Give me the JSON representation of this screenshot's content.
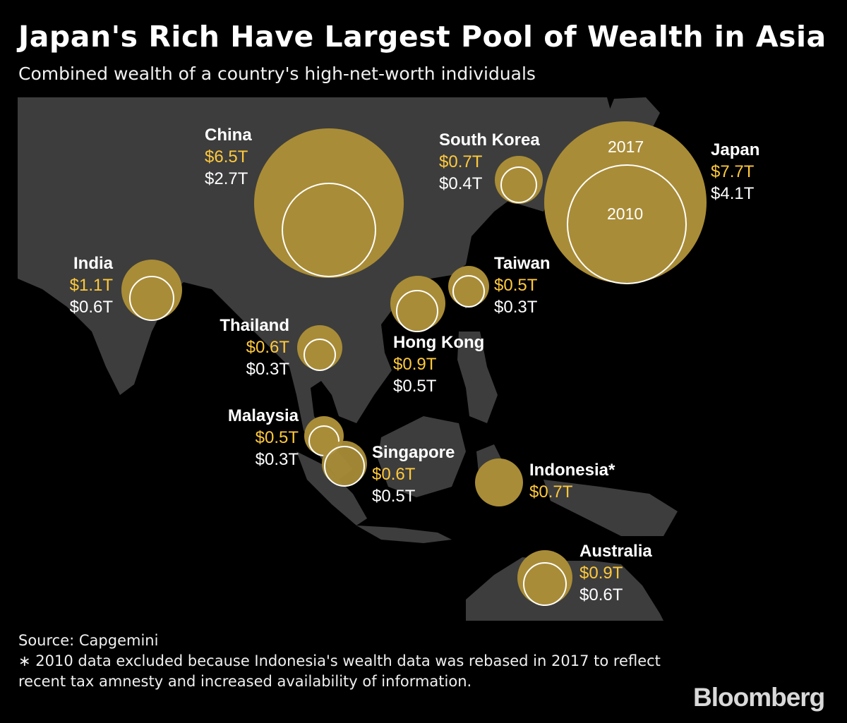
{
  "title": "Japan's Rich Have Largest Pool of Wealth in Asia",
  "subtitle": "Combined wealth of a country's high-net-worth individuals",
  "legend": {
    "label_2017": "2017",
    "label_2010": "2010"
  },
  "colors": {
    "bubble": "#a98c37",
    "value_2017": "#ffc93c",
    "value_2010": "#ffffff",
    "land": "#3d3d3d",
    "background": "#000000"
  },
  "countries": [
    {
      "id": "china",
      "name": "China",
      "wealth_2017": "$6.5T",
      "wealth_2010": "$2.7T",
      "value_2017": 6.5,
      "value_2010": 2.7
    },
    {
      "id": "south-korea",
      "name": "South Korea",
      "wealth_2017": "$0.7T",
      "wealth_2010": "$0.4T",
      "value_2017": 0.7,
      "value_2010": 0.4
    },
    {
      "id": "japan",
      "name": "Japan",
      "wealth_2017": "$7.7T",
      "wealth_2010": "$4.1T",
      "value_2017": 7.7,
      "value_2010": 4.1
    },
    {
      "id": "india",
      "name": "India",
      "wealth_2017": "$1.1T",
      "wealth_2010": "$0.6T",
      "value_2017": 1.1,
      "value_2010": 0.6
    },
    {
      "id": "taiwan",
      "name": "Taiwan",
      "wealth_2017": "$0.5T",
      "wealth_2010": "$0.3T",
      "value_2017": 0.5,
      "value_2010": 0.3
    },
    {
      "id": "thailand",
      "name": "Thailand",
      "wealth_2017": "$0.6T",
      "wealth_2010": "$0.3T",
      "value_2017": 0.6,
      "value_2010": 0.3
    },
    {
      "id": "hong-kong",
      "name": "Hong Kong",
      "wealth_2017": "$0.9T",
      "wealth_2010": "$0.5T",
      "value_2017": 0.9,
      "value_2010": 0.5
    },
    {
      "id": "malaysia",
      "name": "Malaysia",
      "wealth_2017": "$0.5T",
      "wealth_2010": "$0.3T",
      "value_2017": 0.5,
      "value_2010": 0.3
    },
    {
      "id": "singapore",
      "name": "Singapore",
      "wealth_2017": "$0.6T",
      "wealth_2010": "$0.5T",
      "value_2017": 0.6,
      "value_2010": 0.5
    },
    {
      "id": "indonesia",
      "name": "Indonesia*",
      "wealth_2017": "$0.7T",
      "wealth_2010": null,
      "value_2017": 0.7,
      "value_2010": null
    },
    {
      "id": "australia",
      "name": "Australia",
      "wealth_2017": "$0.9T",
      "wealth_2010": "$0.6T",
      "value_2017": 0.9,
      "value_2010": 0.6
    }
  ],
  "footer": {
    "source": "Source: Capgemini",
    "note": "∗ 2010 data excluded because Indonesia's wealth data was rebased in 2017 to reflect recent tax amnesty and increased availability of information."
  },
  "logo": "Bloomberg"
}
